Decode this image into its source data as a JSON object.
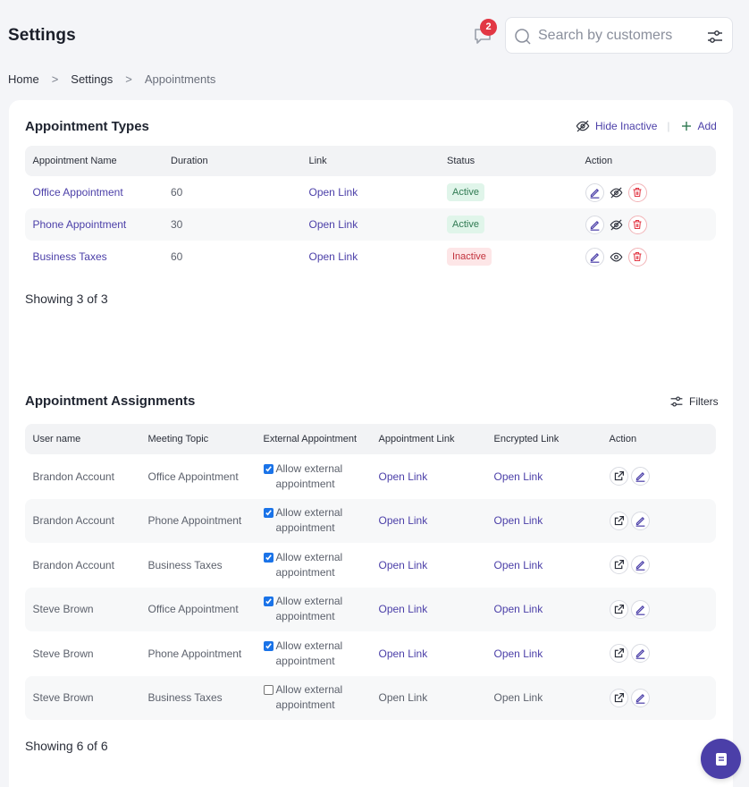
{
  "header": {
    "title": "Settings",
    "notification_count": "2",
    "search_placeholder": "Search by customers"
  },
  "breadcrumb": {
    "items": [
      "Home",
      "Settings",
      "Appointments"
    ],
    "separator": ">"
  },
  "appointment_types": {
    "title": "Appointment Types",
    "hide_inactive_label": "Hide Inactive",
    "add_label": "Add",
    "columns": [
      "Appointment Name",
      "Duration",
      "Link",
      "Status",
      "Action"
    ],
    "rows": [
      {
        "name": "Office Appointment",
        "duration": "60",
        "link": "Open Link",
        "status": "Active",
        "visibility_icon": "eye-off-icon"
      },
      {
        "name": "Phone Appointment",
        "duration": "30",
        "link": "Open Link",
        "status": "Active",
        "visibility_icon": "eye-off-icon"
      },
      {
        "name": "Business Taxes",
        "duration": "60",
        "link": "Open Link",
        "status": "Inactive",
        "visibility_icon": "eye-icon"
      }
    ],
    "showing": "Showing 3 of 3"
  },
  "appointment_assignments": {
    "title": "Appointment Assignments",
    "filters_label": "Filters",
    "columns": [
      "User name",
      "Meeting Topic",
      "External Appointment",
      "Appointment Link",
      "Encrypted Link",
      "Action"
    ],
    "rows": [
      {
        "user": "Brandon Account",
        "topic": "Office Appointment",
        "external": true,
        "external_label": "Allow external appointment",
        "appt_link": "Open Link",
        "enc_link": "Open Link"
      },
      {
        "user": "Brandon Account",
        "topic": "Phone Appointment",
        "external": true,
        "external_label": "Allow external appointment",
        "appt_link": "Open Link",
        "enc_link": "Open Link"
      },
      {
        "user": "Brandon Account",
        "topic": "Business Taxes",
        "external": true,
        "external_label": "Allow external appointment",
        "appt_link": "Open Link",
        "enc_link": "Open Link"
      },
      {
        "user": "Steve Brown",
        "topic": "Office Appointment",
        "external": true,
        "external_label": "Allow external appointment",
        "appt_link": "Open Link",
        "enc_link": "Open Link"
      },
      {
        "user": "Steve Brown",
        "topic": "Phone Appointment",
        "external": true,
        "external_label": "Allow external appointment",
        "appt_link": "Open Link",
        "enc_link": "Open Link"
      },
      {
        "user": "Steve Brown",
        "topic": "Business Taxes",
        "external": false,
        "external_label": "Allow external appointment",
        "appt_link": "Open Link",
        "enc_link": "Open Link"
      }
    ],
    "showing": "Showing 6 of 6"
  },
  "colors": {
    "accent": "#4b3fa8",
    "active_bg": "#e0f5ea",
    "active_text": "#2f7a52",
    "inactive_bg": "#fde6e7",
    "inactive_text": "#c2323c",
    "danger": "#e23744"
  },
  "icons": {
    "chat": "chat-bubble-icon",
    "search": "search-icon",
    "filter": "sliders-icon",
    "edit": "pencil-icon",
    "delete": "trash-icon",
    "open_external": "external-link-icon",
    "support": "document-icon"
  }
}
